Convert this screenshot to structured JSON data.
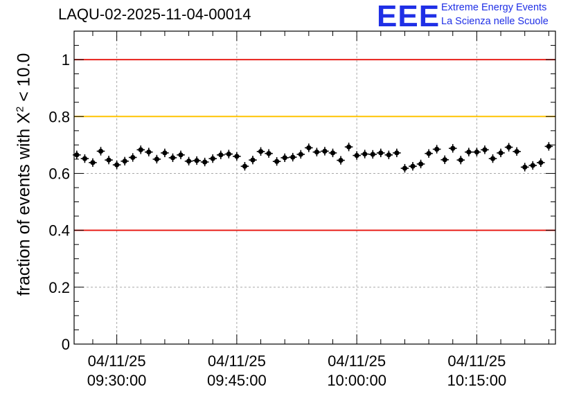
{
  "header": {
    "title": "LAQU-02-2025-11-04-00014",
    "logo_text": "EEE",
    "logo_line1": "Extreme Energy Events",
    "logo_line2": "La Scienza nelle Scuole"
  },
  "chart_data": {
    "type": "scatter",
    "title": "LAQU-02-2025-11-04-00014",
    "ylabel_prefix": "fraction of events with X",
    "ylabel_sup": "2",
    "ylabel_suffix": " < 10.0",
    "xlabel": "",
    "ylim": [
      0,
      1.1
    ],
    "yticks": [
      0,
      0.2,
      0.4,
      0.6,
      0.8,
      1
    ],
    "ytick_labels": [
      "0",
      "0.2",
      "0.4",
      "0.6",
      "0.8",
      "1"
    ],
    "xlim": [
      "04/11/25 09:24:40",
      "04/11/25 10:24:50"
    ],
    "xticks": [
      "04/11/25 09:30:00",
      "04/11/25 09:45:00",
      "04/11/25 10:00:00",
      "04/11/25 10:15:00"
    ],
    "xtick_labels": [
      {
        "date": "04/11/25",
        "time": "09:30:00"
      },
      {
        "date": "04/11/25",
        "time": "09:45:00"
      },
      {
        "date": "04/11/25",
        "time": "10:00:00"
      },
      {
        "date": "04/11/25",
        "time": "10:15:00"
      }
    ],
    "grid": true,
    "reference_lines": [
      {
        "y": 1.0,
        "color": "#e8201a"
      },
      {
        "y": 0.8,
        "color": "#ffc400"
      },
      {
        "y": 0.4,
        "color": "#e8201a"
      }
    ],
    "marker_color": "#000000",
    "x": [
      "09:25:00",
      "09:26:00",
      "09:27:00",
      "09:28:00",
      "09:29:00",
      "09:30:00",
      "09:31:00",
      "09:32:00",
      "09:33:00",
      "09:34:00",
      "09:35:00",
      "09:36:00",
      "09:37:00",
      "09:38:00",
      "09:39:00",
      "09:40:00",
      "09:41:00",
      "09:42:00",
      "09:43:00",
      "09:44:00",
      "09:45:00",
      "09:46:00",
      "09:47:00",
      "09:48:00",
      "09:49:00",
      "09:50:00",
      "09:51:00",
      "09:52:00",
      "09:53:00",
      "09:54:00",
      "09:55:00",
      "09:56:00",
      "09:57:00",
      "09:58:00",
      "09:59:00",
      "10:00:00",
      "10:01:00",
      "10:02:00",
      "10:03:00",
      "10:04:00",
      "10:05:00",
      "10:06:00",
      "10:07:00",
      "10:08:00",
      "10:09:00",
      "10:10:00",
      "10:11:00",
      "10:12:00",
      "10:13:00",
      "10:14:00",
      "10:15:00",
      "10:16:00",
      "10:17:00",
      "10:18:00",
      "10:19:00",
      "10:20:00",
      "10:21:00",
      "10:22:00",
      "10:23:00",
      "10:24:00"
    ],
    "y": [
      0.665,
      0.652,
      0.638,
      0.678,
      0.647,
      0.63,
      0.643,
      0.656,
      0.683,
      0.675,
      0.65,
      0.672,
      0.655,
      0.665,
      0.643,
      0.645,
      0.64,
      0.652,
      0.665,
      0.668,
      0.66,
      0.625,
      0.647,
      0.677,
      0.67,
      0.642,
      0.655,
      0.657,
      0.667,
      0.69,
      0.675,
      0.678,
      0.672,
      0.646,
      0.693,
      0.663,
      0.668,
      0.667,
      0.672,
      0.665,
      0.672,
      0.618,
      0.625,
      0.633,
      0.67,
      0.685,
      0.648,
      0.688,
      0.647,
      0.675,
      0.675,
      0.683,
      0.652,
      0.672,
      0.692,
      0.677,
      0.622,
      0.628,
      0.638,
      0.695
    ],
    "yerr": 0.015,
    "xerr_seconds": 30
  }
}
